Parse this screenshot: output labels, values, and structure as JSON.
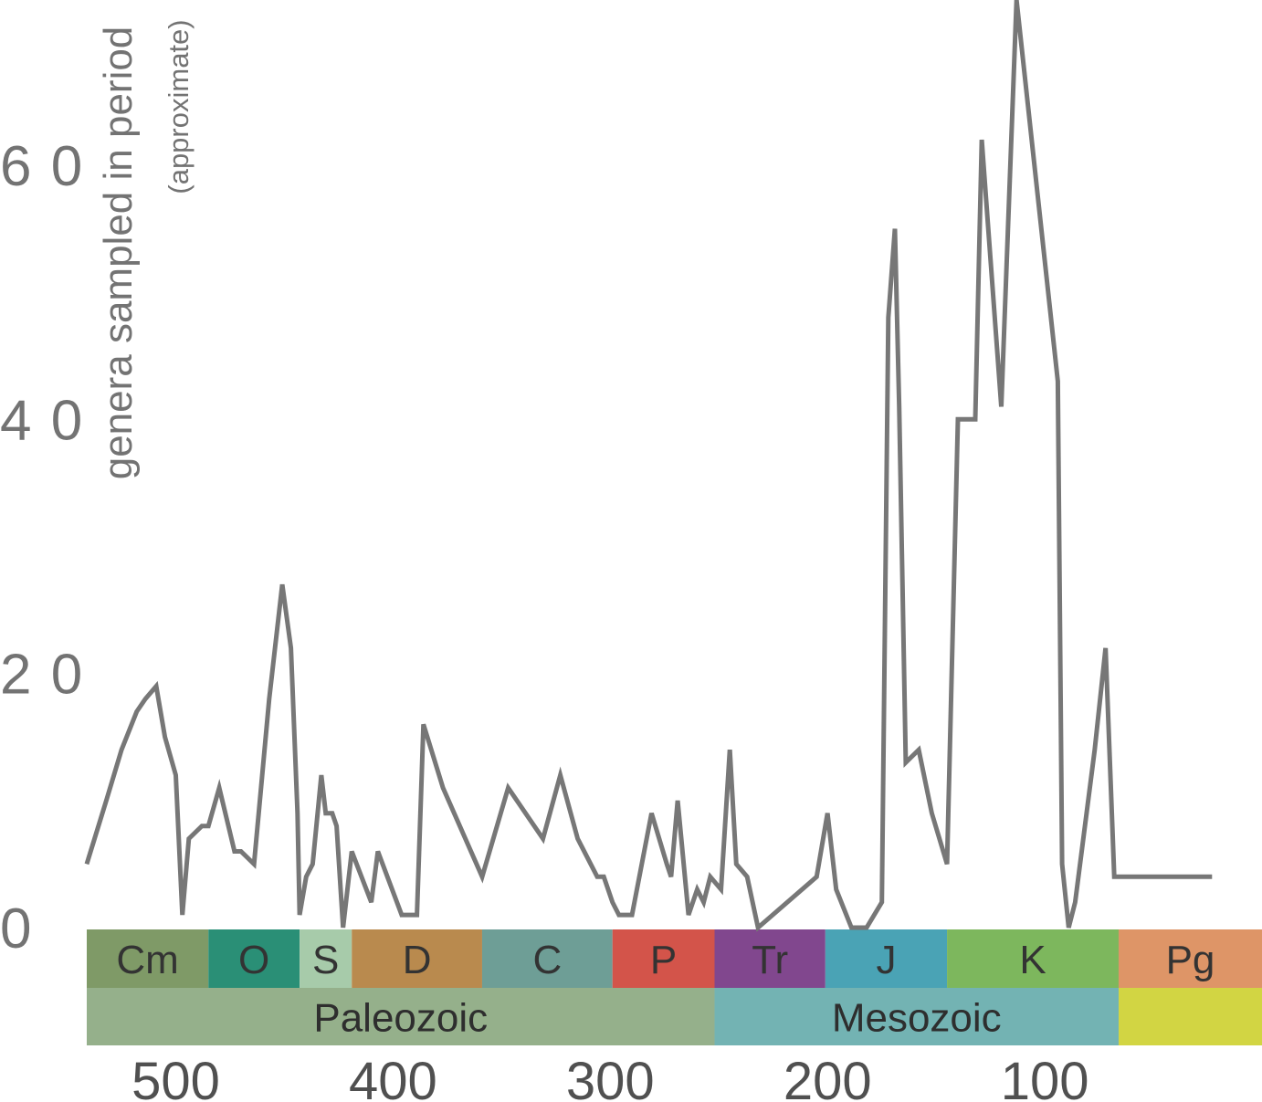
{
  "chart_data": {
    "type": "line",
    "ylabel": "genera sampled in period",
    "ylabel_sub": "(approximate)",
    "ylim": [
      0,
      73
    ],
    "xlim": [
      541,
      0
    ],
    "yticks": [
      "0",
      "2 0",
      "4 0",
      "6 0"
    ],
    "ytick_values": [
      0,
      20,
      40,
      60
    ],
    "xticks": [
      "500",
      "400",
      "300",
      "200",
      "100"
    ],
    "xtick_values": [
      500,
      400,
      300,
      200,
      100
    ],
    "grid": false,
    "series_color": "#777777",
    "series": [
      {
        "x": [
          541,
          532,
          525,
          518,
          514,
          509,
          505,
          500,
          497,
          494,
          488,
          485,
          480,
          473,
          470,
          464,
          457,
          451,
          447,
          444,
          443,
          440,
          437,
          433,
          431,
          428,
          426,
          423,
          419,
          410,
          407,
          396,
          389,
          386,
          377,
          359,
          347,
          331,
          323,
          315,
          306,
          303,
          299,
          296,
          290,
          281,
          274,
          272,
          269,
          264,
          260,
          257,
          254,
          249,
          245,
          242,
          237,
          232,
          205,
          200,
          196,
          189,
          182,
          175,
          172,
          169,
          167,
          164,
          158,
          152,
          145,
          140,
          135,
          132,
          129,
          120,
          113,
          94,
          92,
          89,
          86,
          77,
          72,
          68,
          63,
          58,
          48,
          43,
          41,
          35,
          27,
          23
        ],
        "y": [
          5,
          10,
          14,
          17,
          18,
          19,
          15,
          12,
          1,
          7,
          8,
          8,
          11,
          6,
          6,
          5,
          18,
          27,
          22,
          9,
          1,
          4,
          5,
          12,
          9,
          9,
          8,
          0,
          6,
          2,
          6,
          1,
          1,
          16,
          11,
          4,
          11,
          7,
          12,
          7,
          4,
          4,
          2,
          1,
          1,
          9,
          5,
          4,
          10,
          1,
          3,
          2,
          4,
          3,
          14,
          5,
          4,
          0,
          4,
          9,
          3,
          0,
          0,
          2,
          48,
          55,
          41,
          13,
          14,
          9,
          5,
          40,
          40,
          40,
          62,
          41,
          73,
          43,
          5,
          0,
          2,
          14,
          22,
          4,
          4,
          4,
          4,
          4,
          4,
          4,
          4,
          4
        ]
      }
    ],
    "periods": [
      {
        "label": "Cm",
        "start": 541,
        "end": 485,
        "color": "#7f9a67"
      },
      {
        "label": "O",
        "start": 485,
        "end": 443,
        "color": "#2a8f76"
      },
      {
        "label": "S",
        "start": 443,
        "end": 419,
        "color": "#a7cbaa"
      },
      {
        "label": "D",
        "start": 419,
        "end": 359,
        "color": "#b98a4e"
      },
      {
        "label": "C",
        "start": 359,
        "end": 299,
        "color": "#6e9e96"
      },
      {
        "label": "P",
        "start": 299,
        "end": 252,
        "color": "#d3544a"
      },
      {
        "label": "Tr",
        "start": 252,
        "end": 201,
        "color": "#81478e"
      },
      {
        "label": "J",
        "start": 201,
        "end": 145,
        "color": "#4aa3b5"
      },
      {
        "label": "K",
        "start": 145,
        "end": 66,
        "color": "#7db75d"
      },
      {
        "label": "Pg",
        "start": 66,
        "end": 0,
        "color": "#de9567"
      }
    ],
    "eras": [
      {
        "label": "Paleozoic",
        "start": 541,
        "end": 252,
        "color": "#95b08b"
      },
      {
        "label": "Mesozoic",
        "start": 252,
        "end": 66,
        "color": "#73b3b3"
      },
      {
        "label": "",
        "start": 66,
        "end": 0,
        "color": "#d2d543"
      }
    ]
  }
}
